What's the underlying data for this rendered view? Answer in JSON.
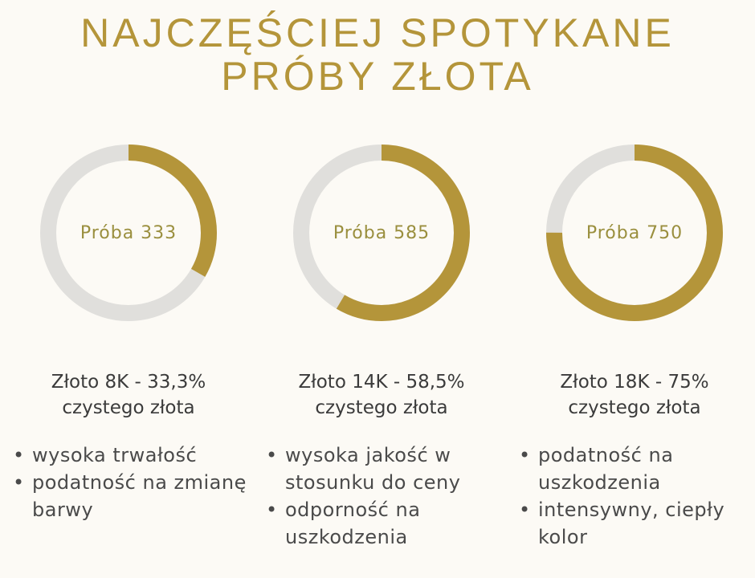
{
  "title": {
    "line1": "NAJCZĘŚCIEJ SPOTYKANE",
    "line2": "PRÓBY ZŁOTA"
  },
  "colors": {
    "gold": "#b4953a",
    "track": "#e0dfdc",
    "label": "#9a8f3e"
  },
  "chart_data": {
    "type": "donut",
    "items": [
      {
        "label": "Próba 333",
        "value": 33.3,
        "max": 100,
        "heading_line1": "Złoto 8K - 33,3%",
        "heading_line2": "czystego złota",
        "bullets": [
          "wysoka trwałość",
          "podatność na zmianę barwy"
        ]
      },
      {
        "label": "Próba 585",
        "value": 58.5,
        "max": 100,
        "heading_line1": "Złoto 14K - 58,5%",
        "heading_line2": "czystego złota",
        "bullets": [
          "wysoka jakość w stosunku do ceny",
          "odporność na uszkodzenia"
        ]
      },
      {
        "label": "Próba 750",
        "value": 75,
        "max": 100,
        "heading_line1": "Złoto 18K - 75%",
        "heading_line2": "czystego złota",
        "bullets": [
          "podatność na uszkodzenia",
          "intensywny, ciepły kolor"
        ]
      }
    ]
  }
}
